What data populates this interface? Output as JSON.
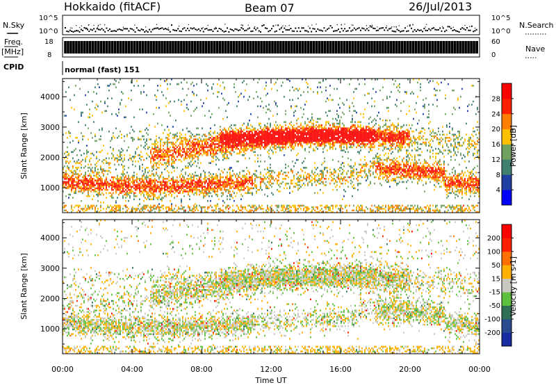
{
  "header": {
    "station": "Hokkaido (fitACF)",
    "beam": "Beam 07",
    "date": "26/Jul/2013"
  },
  "left_labels": {
    "nsky": "N.Sky",
    "freq": "Freq.",
    "freq_unit": "[MHz]",
    "cpid": "CPID"
  },
  "right_labels": {
    "nsearch": "N.Search",
    "nave": "Nave"
  },
  "cpid_text": "normal (fast) 151",
  "axes": {
    "xlabel": "Time UT",
    "ylabel": "Slant Range [km]",
    "xticks": [
      "00:00",
      "04:00",
      "08:00",
      "12:00",
      "16:00",
      "20:00",
      "00:00"
    ],
    "yticks": [
      "1000",
      "2000",
      "3000",
      "4000"
    ],
    "noise_ticks": [
      "10^5",
      "10^0"
    ],
    "noise_ticks_right": [
      "10^5",
      "10^0"
    ],
    "freq_ticks": [
      "18",
      "8"
    ],
    "nave_ticks": [
      "60",
      "0"
    ]
  },
  "chart_data": [
    {
      "type": "heatmap",
      "name": "Power",
      "colorbar_label": "Power [dB]",
      "colorbar_ticks": [
        "28",
        "24",
        "20",
        "16",
        "12",
        "8",
        "4"
      ],
      "colors": [
        "#0000ff",
        "#203fa0",
        "#3f7f6f",
        "#6fa060",
        "#ffc000",
        "#ff8000",
        "#ff2000",
        "#ff0000"
      ],
      "x_range_hours": [
        0,
        24
      ],
      "y_range_km": [
        180,
        4600
      ]
    },
    {
      "type": "heatmap",
      "name": "Velocity",
      "colorbar_label": "Velocity [m s-1]",
      "colorbar_ticks": [
        "200",
        "100",
        "50",
        "15",
        "-15",
        "-50",
        "-100",
        "-200"
      ],
      "colors": [
        "#1a2aa0",
        "#2a4a90",
        "#2f6f55",
        "#5fc040",
        "#c8c8c0",
        "#ffb000",
        "#ff7000",
        "#ff2000",
        "#ff0000"
      ],
      "x_range_hours": [
        0,
        24
      ],
      "y_range_km": [
        180,
        4600
      ]
    }
  ]
}
